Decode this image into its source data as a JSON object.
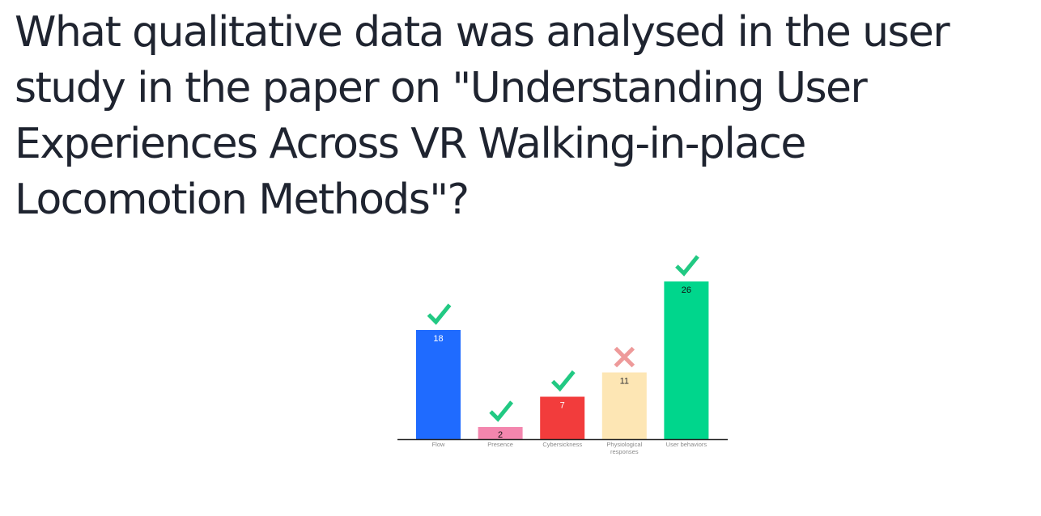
{
  "question": {
    "lines": [
      "What qualitative data was analysed in the user",
      "study in the paper on \"Understanding User",
      "Experiences Across VR Walking-in-place",
      "Locomotion Methods\"?"
    ]
  },
  "chart_data": {
    "type": "bar",
    "categories": [
      "Flow",
      "Presence",
      "Cybersickness",
      "Physiological responses",
      "User behaviors"
    ],
    "values": [
      18,
      2,
      7,
      11,
      26
    ],
    "ylim": [
      0,
      26
    ],
    "grid": false,
    "bar_colors": [
      "#1f6bff",
      "#f386ae",
      "#f23c3c",
      "#fde6b4",
      "#00d68c"
    ],
    "value_label_colors": [
      "#ffffff",
      "#111111",
      "#ffffff",
      "#333333",
      "#111111"
    ],
    "markers": [
      "check",
      "check",
      "check",
      "cross",
      "check"
    ],
    "marker_colors": {
      "check": "#22c983",
      "cross": "#ee9a9a"
    },
    "axis_color": "#222222"
  }
}
